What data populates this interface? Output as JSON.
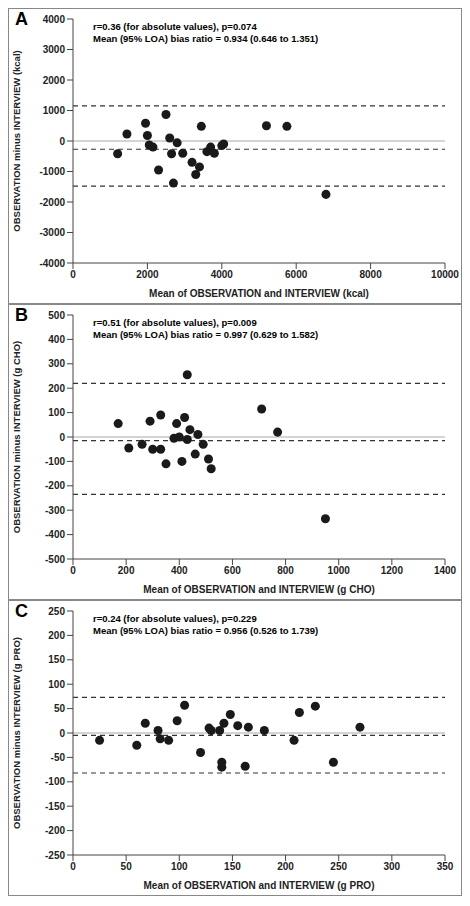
{
  "chart_data": [
    {
      "type": "scatter",
      "panel_label": "A",
      "annotations": [
        "r=0.36 (for absolute values), p=0.074",
        "Mean (95% LOA) bias ratio = 0.934 (0.646 to 1.351)"
      ],
      "x_label": "Mean of OBSERVATION and INTERVIEW (kcal)",
      "y_label": "OBSERVATION minus INTERVIEW (kcal)",
      "x": [
        1200,
        1450,
        1950,
        2000,
        2050,
        2150,
        2300,
        2500,
        2600,
        2650,
        2700,
        2800,
        2950,
        3200,
        3300,
        3400,
        3450,
        3600,
        3700,
        3800,
        4000,
        4050,
        5200,
        5750,
        6800
      ],
      "values": [
        -420,
        230,
        580,
        180,
        -130,
        -200,
        -950,
        870,
        100,
        -420,
        -1380,
        -60,
        -400,
        -700,
        -1100,
        -850,
        480,
        -350,
        -200,
        -400,
        -150,
        -100,
        500,
        480,
        -1750
      ],
      "color": "#1a1a1a",
      "marker": "circle",
      "xlim": [
        0,
        10000
      ],
      "xticks": [
        0,
        2000,
        4000,
        6000,
        8000,
        10000
      ],
      "ylim": [
        -4000,
        4000
      ],
      "yticks": [
        -4000,
        -3000,
        -2000,
        -1000,
        0,
        1000,
        2000,
        3000,
        4000
      ],
      "hlines": [
        {
          "value": 1150,
          "line_style": "dashed"
        },
        {
          "value": -270,
          "line_style": "dashed"
        },
        {
          "value": -1480,
          "line_style": "dashed"
        },
        {
          "value": 0,
          "line_style": "solid"
        }
      ]
    },
    {
      "type": "scatter",
      "panel_label": "B",
      "annotations": [
        "r=0.51 (for absolute values), p=0.009",
        "Mean (95% LOA) bias ratio = 0.997 (0.629 to 1.582)"
      ],
      "x_label": "Mean of OBSERVATION and INTERVIEW (g CHO)",
      "y_label": "OBSERVATION minus INTERVIEW (g CHO)",
      "x": [
        170,
        210,
        260,
        290,
        300,
        330,
        330,
        350,
        380,
        390,
        400,
        410,
        420,
        430,
        430,
        440,
        460,
        470,
        490,
        510,
        520,
        710,
        770,
        950
      ],
      "values": [
        55,
        -45,
        -30,
        65,
        -50,
        90,
        -50,
        -110,
        -5,
        55,
        0,
        -100,
        80,
        255,
        -10,
        30,
        -70,
        10,
        -30,
        -90,
        -130,
        115,
        20,
        -335
      ],
      "color": "#1a1a1a",
      "marker": "circle",
      "xlim": [
        0,
        1400
      ],
      "xticks": [
        0,
        200,
        400,
        600,
        800,
        1000,
        1200,
        1400
      ],
      "ylim": [
        -500,
        500
      ],
      "yticks": [
        -500,
        -400,
        -300,
        -200,
        -100,
        0,
        100,
        200,
        300,
        400,
        500
      ],
      "hlines": [
        {
          "value": 220,
          "line_style": "dashed"
        },
        {
          "value": -15,
          "line_style": "dashed"
        },
        {
          "value": -235,
          "line_style": "dashed"
        },
        {
          "value": 0,
          "line_style": "solid"
        }
      ]
    },
    {
      "type": "scatter",
      "panel_label": "C",
      "annotations": [
        "r=0.24 (for absolute values), p=0.229",
        "Mean (95% LOA) bias ratio = 0.956 (0.526 to 1.739)"
      ],
      "x_label": "Mean of OBSERVATION and INTERVIEW (g PRO)",
      "y_label": "OBSERVATION minus INTERVIEW (g PRO)",
      "x": [
        25,
        60,
        68,
        80,
        82,
        90,
        98,
        105,
        120,
        128,
        130,
        138,
        140,
        140,
        142,
        148,
        155,
        162,
        165,
        180,
        208,
        213,
        228,
        245,
        270
      ],
      "values": [
        -15,
        -25,
        20,
        5,
        -12,
        -15,
        25,
        57,
        -40,
        10,
        5,
        5,
        -60,
        -70,
        20,
        38,
        15,
        -68,
        12,
        5,
        -15,
        42,
        55,
        -60,
        12
      ],
      "color": "#1a1a1a",
      "marker": "circle",
      "xlim": [
        0,
        350
      ],
      "xticks": [
        0,
        50,
        100,
        150,
        200,
        250,
        300,
        350
      ],
      "ylim": [
        -250,
        250
      ],
      "yticks": [
        -250,
        -200,
        -150,
        -100,
        -50,
        0,
        50,
        100,
        150,
        200,
        250
      ],
      "hlines": [
        {
          "value": 73,
          "line_style": "dashed"
        },
        {
          "value": -5,
          "line_style": "dashed"
        },
        {
          "value": -82,
          "line_style": "dashed"
        },
        {
          "value": 0,
          "line_style": "solid"
        }
      ]
    }
  ]
}
